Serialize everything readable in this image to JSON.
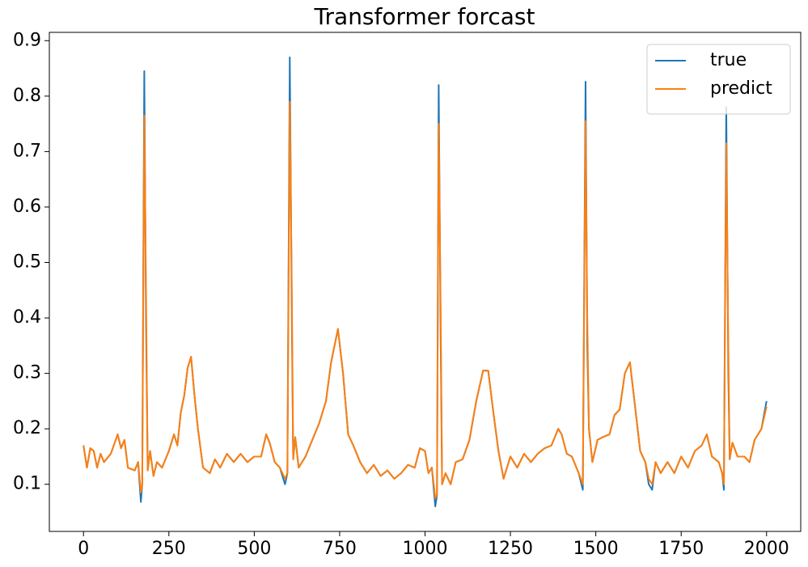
{
  "chart_data": {
    "type": "line",
    "title": "Transformer forcast",
    "x": [
      0,
      10,
      20,
      30,
      40,
      50,
      60,
      80,
      100,
      110,
      120,
      130,
      150,
      160,
      168,
      172,
      178,
      183,
      188,
      195,
      205,
      215,
      230,
      250,
      265,
      275,
      285,
      295,
      305,
      315,
      325,
      335,
      350,
      370,
      385,
      400,
      420,
      440,
      460,
      480,
      500,
      520,
      535,
      545,
      560,
      575,
      590,
      597,
      604,
      610,
      614,
      620,
      630,
      650,
      670,
      690,
      710,
      725,
      745,
      760,
      775,
      790,
      810,
      830,
      850,
      870,
      890,
      910,
      930,
      950,
      970,
      985,
      1000,
      1010,
      1020,
      1030,
      1035,
      1040,
      1046,
      1050,
      1060,
      1075,
      1090,
      1110,
      1130,
      1150,
      1170,
      1185,
      1200,
      1215,
      1230,
      1250,
      1270,
      1290,
      1310,
      1330,
      1350,
      1370,
      1390,
      1400,
      1415,
      1430,
      1450,
      1462,
      1470,
      1475,
      1480,
      1490,
      1505,
      1520,
      1540,
      1555,
      1570,
      1585,
      1600,
      1615,
      1630,
      1645,
      1655,
      1665,
      1675,
      1690,
      1710,
      1730,
      1750,
      1770,
      1790,
      1810,
      1825,
      1840,
      1860,
      1870,
      1875,
      1882,
      1888,
      1892,
      1900,
      1915,
      1935,
      1950,
      1965,
      1985,
      2000
    ],
    "series": [
      {
        "name": "true",
        "color": "#1f77b4",
        "values": [
          0.17,
          0.13,
          0.165,
          0.16,
          0.13,
          0.155,
          0.14,
          0.155,
          0.19,
          0.165,
          0.18,
          0.13,
          0.125,
          0.14,
          0.068,
          0.1,
          0.845,
          0.4,
          0.125,
          0.16,
          0.115,
          0.14,
          0.13,
          0.16,
          0.19,
          0.17,
          0.23,
          0.26,
          0.31,
          0.33,
          0.26,
          0.2,
          0.13,
          0.12,
          0.145,
          0.13,
          0.155,
          0.14,
          0.155,
          0.14,
          0.15,
          0.15,
          0.19,
          0.175,
          0.14,
          0.13,
          0.1,
          0.12,
          0.87,
          0.4,
          0.145,
          0.185,
          0.13,
          0.15,
          0.18,
          0.21,
          0.25,
          0.32,
          0.38,
          0.3,
          0.19,
          0.17,
          0.14,
          0.12,
          0.135,
          0.115,
          0.125,
          0.11,
          0.12,
          0.135,
          0.13,
          0.165,
          0.16,
          0.12,
          0.13,
          0.06,
          0.08,
          0.82,
          0.35,
          0.1,
          0.12,
          0.1,
          0.14,
          0.145,
          0.18,
          0.25,
          0.305,
          0.305,
          0.23,
          0.16,
          0.11,
          0.15,
          0.13,
          0.155,
          0.14,
          0.155,
          0.165,
          0.17,
          0.2,
          0.19,
          0.155,
          0.15,
          0.12,
          0.09,
          0.826,
          0.35,
          0.2,
          0.14,
          0.18,
          0.185,
          0.19,
          0.225,
          0.235,
          0.3,
          0.32,
          0.24,
          0.16,
          0.14,
          0.1,
          0.09,
          0.14,
          0.12,
          0.14,
          0.12,
          0.15,
          0.13,
          0.16,
          0.17,
          0.19,
          0.15,
          0.14,
          0.12,
          0.09,
          0.78,
          0.3,
          0.145,
          0.175,
          0.15,
          0.15,
          0.14,
          0.18,
          0.2,
          0.25
        ]
      },
      {
        "name": "predict",
        "color": "#ff7f0e",
        "values": [
          0.17,
          0.13,
          0.165,
          0.16,
          0.13,
          0.155,
          0.14,
          0.155,
          0.19,
          0.165,
          0.18,
          0.13,
          0.125,
          0.14,
          0.085,
          0.1,
          0.765,
          0.45,
          0.125,
          0.16,
          0.115,
          0.14,
          0.13,
          0.16,
          0.19,
          0.17,
          0.23,
          0.26,
          0.31,
          0.33,
          0.26,
          0.2,
          0.13,
          0.12,
          0.145,
          0.13,
          0.155,
          0.14,
          0.155,
          0.14,
          0.15,
          0.15,
          0.19,
          0.175,
          0.14,
          0.13,
          0.11,
          0.12,
          0.79,
          0.45,
          0.145,
          0.185,
          0.13,
          0.15,
          0.18,
          0.21,
          0.25,
          0.32,
          0.38,
          0.3,
          0.19,
          0.17,
          0.14,
          0.12,
          0.135,
          0.115,
          0.125,
          0.11,
          0.12,
          0.135,
          0.13,
          0.165,
          0.16,
          0.12,
          0.13,
          0.075,
          0.08,
          0.75,
          0.4,
          0.1,
          0.12,
          0.1,
          0.14,
          0.145,
          0.18,
          0.25,
          0.305,
          0.305,
          0.23,
          0.16,
          0.11,
          0.15,
          0.13,
          0.155,
          0.14,
          0.155,
          0.165,
          0.17,
          0.2,
          0.19,
          0.155,
          0.15,
          0.12,
          0.1,
          0.755,
          0.4,
          0.2,
          0.14,
          0.18,
          0.185,
          0.19,
          0.225,
          0.235,
          0.3,
          0.32,
          0.24,
          0.16,
          0.14,
          0.11,
          0.1,
          0.14,
          0.12,
          0.14,
          0.12,
          0.15,
          0.13,
          0.16,
          0.17,
          0.19,
          0.15,
          0.14,
          0.12,
          0.1,
          0.715,
          0.35,
          0.145,
          0.175,
          0.15,
          0.15,
          0.14,
          0.18,
          0.2,
          0.24
        ]
      }
    ],
    "xlim": [
      -100,
      2100
    ],
    "xticks": [
      0,
      250,
      500,
      750,
      1000,
      1250,
      1500,
      1750,
      2000
    ],
    "ylim": [
      0.015,
      0.915
    ],
    "yticks": [
      0.1,
      0.2,
      0.3,
      0.4,
      0.5,
      0.6,
      0.7,
      0.8,
      0.9
    ],
    "legend": "upper right"
  }
}
